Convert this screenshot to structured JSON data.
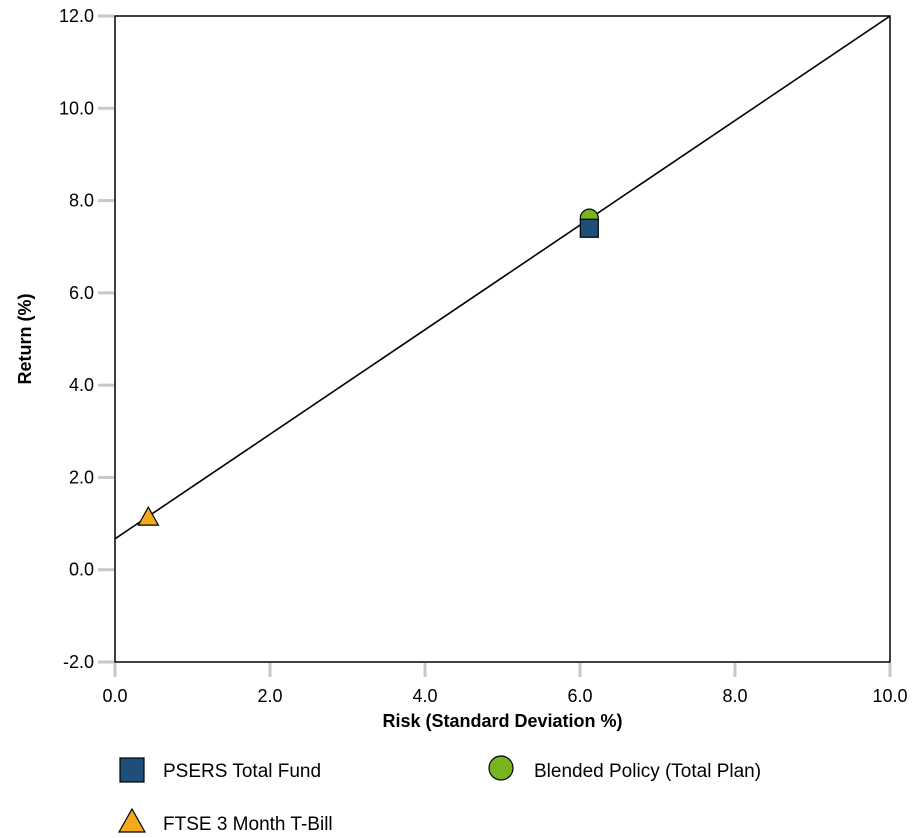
{
  "chart_data": {
    "type": "scatter",
    "title": "",
    "xlabel": "Risk (Standard Deviation %)",
    "ylabel": "Return (%)",
    "xlim": [
      0.0,
      10.0
    ],
    "ylim": [
      -2.0,
      12.0
    ],
    "x_ticks": [
      0.0,
      2.0,
      4.0,
      6.0,
      8.0,
      10.0
    ],
    "y_ticks": [
      -2.0,
      0.0,
      2.0,
      4.0,
      6.0,
      8.0,
      10.0,
      12.0
    ],
    "x_tick_labels": [
      "0.0",
      "2.0",
      "4.0",
      "6.0",
      "8.0",
      "10.0"
    ],
    "y_tick_labels": [
      "-2.0",
      "0.0",
      "2.0",
      "4.0",
      "6.0",
      "8.0",
      "10.0",
      "12.0"
    ],
    "grid": false,
    "legend_position": "bottom",
    "series": [
      {
        "name": "PSERS Total Fund",
        "marker": "square",
        "color": "#1f4e79",
        "x": 6.12,
        "y": 7.4
      },
      {
        "name": "Blended Policy (Total Plan)",
        "marker": "circle",
        "color": "#78b41e",
        "x": 6.12,
        "y": 7.62
      },
      {
        "name": "FTSE 3 Month T-Bill",
        "marker": "triangle",
        "color": "#f4a81c",
        "x": 0.43,
        "y": 1.14
      }
    ],
    "capital_market_line": {
      "x": [
        0.0,
        10.0
      ],
      "y": [
        0.67,
        12.0
      ],
      "color": "#000000"
    }
  }
}
